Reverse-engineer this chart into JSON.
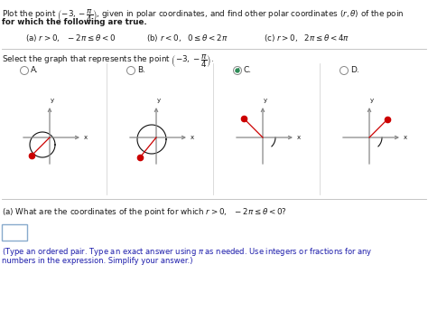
{
  "bg_color": "#ffffff",
  "text_color": "#1a1a1a",
  "blue_color": "#1a1aaa",
  "check_color": "#2e8b57",
  "point_color": "#cc0000",
  "line_color": "#cc0000",
  "axis_color": "#888888",
  "curve_color": "#111111",
  "title_line1": "Plot the point $\\left(-3, -\\dfrac{\\pi}{4}\\right)$, given in polar coordinates, and find other polar coordinates $(r,\\theta)$ of the poin",
  "title_line2": "for which the following are true.",
  "cond_a": "(a) $r>0,\\ \\ -2\\pi\\leq\\theta<0$",
  "cond_b": "(b) $r<0,\\ \\ 0\\leq\\theta<2\\pi$",
  "cond_c": "(c) $r>0,\\ \\ 2\\pi\\leq\\theta<4\\pi$",
  "select_text": "Select the graph that represents the point $\\left(-3, -\\dfrac{\\pi}{4}\\right)$.",
  "options": [
    "A.",
    "B.",
    "C.",
    "D."
  ],
  "checked_idx": 2,
  "qa_text": "(a) What are the coordinates of the point for which $r>0,\\ \\ -2\\pi\\leq\\theta<0$?",
  "hint_line1": "(Type an ordered pair. Type an exact answer using $\\pi$ as needed. Use integers or fractions for any",
  "hint_line2": "numbers in the expression. Simplify your answer.)"
}
